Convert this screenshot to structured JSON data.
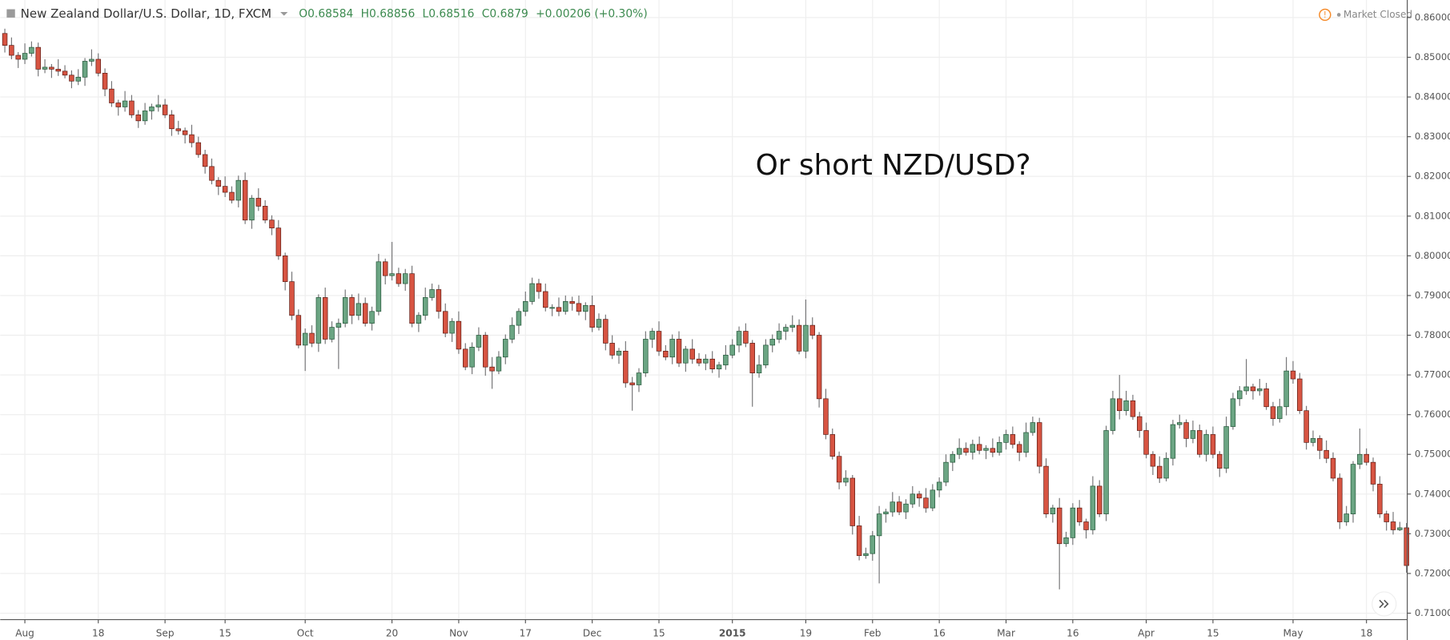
{
  "chart_data": {
    "type": "candlestick",
    "header": {
      "symbol": "New Zealand Dollar/U.S. Dollar, 1D, FXCM",
      "ohlc": [
        {
          "label": "O",
          "value": 0.68584
        },
        {
          "label": "H",
          "value": 0.68856
        },
        {
          "label": "L",
          "value": 0.68516
        },
        {
          "label": "C",
          "value": 0.6879
        }
      ],
      "change": "+0.00206 (+0.30%)",
      "status": "Market Closed"
    },
    "annotation": "Or short NZD/USD?",
    "categories": [
      null,
      null,
      null,
      "Aug",
      null,
      null,
      null,
      null,
      null,
      null,
      null,
      null,
      null,
      null,
      "18",
      null,
      null,
      null,
      null,
      null,
      null,
      null,
      null,
      null,
      "Sep",
      null,
      null,
      null,
      null,
      null,
      null,
      null,
      null,
      "15",
      null,
      null,
      null,
      null,
      null,
      null,
      null,
      null,
      null,
      null,
      null,
      "Oct",
      null,
      null,
      null,
      null,
      null,
      null,
      null,
      null,
      null,
      null,
      null,
      null,
      "20",
      null,
      null,
      null,
      null,
      null,
      null,
      null,
      null,
      null,
      "Nov",
      null,
      null,
      null,
      null,
      null,
      null,
      null,
      null,
      null,
      "17",
      null,
      null,
      null,
      null,
      null,
      null,
      null,
      null,
      null,
      "Dec",
      null,
      null,
      null,
      null,
      null,
      null,
      null,
      null,
      null,
      "15",
      null,
      null,
      null,
      null,
      null,
      null,
      null,
      null,
      null,
      null,
      "2015",
      null,
      null,
      null,
      null,
      null,
      null,
      null,
      null,
      null,
      null,
      "19",
      null,
      null,
      null,
      null,
      null,
      null,
      null,
      null,
      null,
      "Feb",
      null,
      null,
      null,
      null,
      null,
      null,
      null,
      null,
      null,
      "16",
      null,
      null,
      null,
      null,
      null,
      null,
      null,
      null,
      null,
      "Mar",
      null,
      null,
      null,
      null,
      null,
      null,
      null,
      null,
      null,
      "16",
      null,
      null,
      null,
      null,
      null,
      null,
      null,
      null,
      null,
      null,
      "Apr",
      null,
      null,
      null,
      null,
      null,
      null,
      null,
      null,
      null,
      "15",
      null,
      null,
      null,
      null,
      null,
      null,
      null,
      null,
      null,
      null,
      null,
      "May",
      null,
      null,
      null,
      null,
      null,
      null,
      null,
      null,
      null,
      null,
      "18",
      null,
      null,
      null,
      null,
      null,
      null
    ],
    "open": [
      0.856,
      0.853,
      0.8505,
      0.8495,
      0.851,
      0.8525,
      0.847,
      0.8475,
      0.847,
      0.8465,
      0.8455,
      0.844,
      0.845,
      0.849,
      0.8495,
      0.846,
      0.842,
      0.8385,
      0.8375,
      0.839,
      0.8355,
      0.834,
      0.8365,
      0.8375,
      0.838,
      0.8355,
      0.832,
      0.8315,
      0.8305,
      0.8285,
      0.8255,
      0.8225,
      0.819,
      0.8175,
      0.816,
      0.814,
      0.819,
      0.809,
      0.8145,
      0.8125,
      0.809,
      0.807,
      0.8,
      0.7935,
      0.785,
      0.7775,
      0.7805,
      0.778,
      0.7895,
      0.779,
      0.782,
      0.783,
      0.7895,
      0.785,
      0.788,
      0.783,
      0.786,
      0.7985,
      0.795,
      0.7955,
      0.793,
      0.7955,
      0.783,
      0.785,
      0.7895,
      0.7915,
      0.786,
      0.7805,
      0.7835,
      0.7765,
      0.772,
      0.777,
      0.78,
      0.772,
      0.771,
      0.7745,
      0.779,
      0.7825,
      0.786,
      0.7885,
      0.793,
      0.791,
      0.787,
      0.787,
      0.786,
      0.7885,
      0.788,
      0.786,
      0.7875,
      0.782,
      0.784,
      0.778,
      0.775,
      0.776,
      0.768,
      0.7675,
      0.7705,
      0.779,
      0.781,
      0.776,
      0.7745,
      0.779,
      0.773,
      0.7765,
      0.774,
      0.773,
      0.774,
      0.7715,
      0.7725,
      0.775,
      0.7775,
      0.781,
      0.778,
      0.7705,
      0.7725,
      0.7775,
      0.779,
      0.781,
      0.782,
      0.7825,
      0.776,
      0.7825,
      0.78,
      0.764,
      0.755,
      0.7495,
      0.743,
      0.744,
      0.732,
      0.7245,
      0.725,
      0.7295,
      0.735,
      0.7355,
      0.738,
      0.7355,
      0.7375,
      0.74,
      0.739,
      0.7365,
      0.741,
      0.743,
      0.748,
      0.75,
      0.7515,
      0.7505,
      0.7525,
      0.751,
      0.7515,
      0.7505,
      0.753,
      0.755,
      0.7525,
      0.7505,
      0.7555,
      0.758,
      0.747,
      0.735,
      0.7365,
      0.7275,
      0.729,
      0.7365,
      0.733,
      0.731,
      0.742,
      0.735,
      0.756,
      0.764,
      0.761,
      0.7635,
      0.7595,
      0.756,
      0.75,
      0.747,
      0.744,
      0.749,
      0.7575,
      0.758,
      0.754,
      0.756,
      0.75,
      0.755,
      0.75,
      0.7465,
      0.757,
      0.764,
      0.766,
      0.767,
      0.766,
      0.7665,
      0.762,
      0.759,
      0.762,
      0.771,
      0.769,
      0.761,
      0.753,
      0.754,
      0.751,
      0.749,
      0.744,
      0.733,
      0.735,
      0.7475,
      0.75,
      0.748,
      0.7425,
      0.735,
      0.733,
      0.731,
      0.7315
    ],
    "high": [
      0.8572,
      0.855,
      0.8513,
      0.8535,
      0.854,
      0.8537,
      0.8495,
      0.8483,
      0.8495,
      0.848,
      0.8467,
      0.847,
      0.8498,
      0.852,
      0.851,
      0.8472,
      0.844,
      0.8393,
      0.8415,
      0.8405,
      0.8367,
      0.8385,
      0.8383,
      0.8405,
      0.8395,
      0.8367,
      0.834,
      0.8323,
      0.833,
      0.83,
      0.8267,
      0.8245,
      0.8198,
      0.82,
      0.8175,
      0.8202,
      0.821,
      0.8153,
      0.817,
      0.814,
      0.8102,
      0.809,
      0.8008,
      0.796,
      0.7865,
      0.7817,
      0.7825,
      0.7903,
      0.792,
      0.7835,
      0.7842,
      0.7915,
      0.7903,
      0.7905,
      0.7895,
      0.7872,
      0.8005,
      0.7993,
      0.8035,
      0.797,
      0.7967,
      0.7975,
      0.7858,
      0.792,
      0.793,
      0.7927,
      0.788,
      0.7843,
      0.786,
      0.778,
      0.7782,
      0.782,
      0.7808,
      0.7745,
      0.776,
      0.7802,
      0.7845,
      0.7868,
      0.791,
      0.7945,
      0.7942,
      0.793,
      0.7878,
      0.7895,
      0.79,
      0.7897,
      0.79,
      0.7883,
      0.79,
      0.7855,
      0.7852,
      0.78,
      0.7768,
      0.7785,
      0.7695,
      0.7717,
      0.781,
      0.7818,
      0.7835,
      0.7775,
      0.7802,
      0.781,
      0.7773,
      0.779,
      0.7755,
      0.7752,
      0.776,
      0.7733,
      0.7775,
      0.779,
      0.7822,
      0.783,
      0.7788,
      0.775,
      0.779,
      0.7802,
      0.783,
      0.7828,
      0.785,
      0.784,
      0.789,
      0.7845,
      0.7808,
      0.7665,
      0.7565,
      0.7507,
      0.746,
      0.7448,
      0.7345,
      0.7265,
      0.7307,
      0.737,
      0.7363,
      0.7405,
      0.7395,
      0.7387,
      0.742,
      0.7408,
      0.7415,
      0.7425,
      0.7442,
      0.75,
      0.7508,
      0.754,
      0.753,
      0.7537,
      0.7545,
      0.7523,
      0.754,
      0.7545,
      0.7562,
      0.757,
      0.7533,
      0.758,
      0.7595,
      0.7592,
      0.749,
      0.7373,
      0.739,
      0.7305,
      0.7377,
      0.7385,
      0.7338,
      0.7445,
      0.7435,
      0.7572,
      0.766,
      0.77,
      0.766,
      0.765,
      0.7607,
      0.758,
      0.7508,
      0.7495,
      0.7505,
      0.7587,
      0.76,
      0.7588,
      0.7585,
      0.7575,
      0.7562,
      0.757,
      0.7508,
      0.7595,
      0.7655,
      0.7672,
      0.774,
      0.7678,
      0.769,
      0.768,
      0.7632,
      0.764,
      0.7745,
      0.7735,
      0.7705,
      0.7622,
      0.756,
      0.7548,
      0.7535,
      0.7505,
      0.7452,
      0.737,
      0.7483,
      0.7565,
      0.7515,
      0.7492,
      0.7445,
      0.7358,
      0.7355,
      0.733,
      0.7327
    ],
    "low": [
      0.8512,
      0.8495,
      0.8473,
      0.8483,
      0.8502,
      0.8452,
      0.846,
      0.8448,
      0.8453,
      0.8447,
      0.8422,
      0.843,
      0.8428,
      0.8478,
      0.8452,
      0.8402,
      0.8375,
      0.8353,
      0.8363,
      0.8347,
      0.8322,
      0.833,
      0.8343,
      0.8363,
      0.8347,
      0.8302,
      0.8305,
      0.8283,
      0.8273,
      0.8247,
      0.8207,
      0.818,
      0.8153,
      0.8148,
      0.8132,
      0.8122,
      0.808,
      0.8068,
      0.8113,
      0.8082,
      0.8052,
      0.799,
      0.7913,
      0.7838,
      0.7767,
      0.771,
      0.777,
      0.7758,
      0.7778,
      0.7782,
      0.7715,
      0.782,
      0.7828,
      0.7838,
      0.7822,
      0.7812,
      0.785,
      0.7928,
      0.7938,
      0.7922,
      0.7912,
      0.782,
      0.7808,
      0.7838,
      0.7887,
      0.7842,
      0.7795,
      0.7783,
      0.7753,
      0.7712,
      0.7702,
      0.776,
      0.7698,
      0.7665,
      0.7702,
      0.7727,
      0.778,
      0.7803,
      0.7848,
      0.7877,
      0.7892,
      0.786,
      0.7848,
      0.7848,
      0.7852,
      0.7862,
      0.785,
      0.7838,
      0.7808,
      0.7812,
      0.7762,
      0.774,
      0.7728,
      0.7668,
      0.761,
      0.7657,
      0.7695,
      0.7768,
      0.7748,
      0.7737,
      0.7727,
      0.772,
      0.7708,
      0.7728,
      0.7722,
      0.7712,
      0.7705,
      0.7693,
      0.7713,
      0.7742,
      0.7757,
      0.777,
      0.762,
      0.7693,
      0.7717,
      0.7757,
      0.778,
      0.7788,
      0.7808,
      0.7752,
      0.7742,
      0.779,
      0.7618,
      0.7538,
      0.7487,
      0.7412,
      0.742,
      0.7298,
      0.7233,
      0.7237,
      0.7232,
      0.7175,
      0.7328,
      0.7343,
      0.7347,
      0.7337,
      0.7365,
      0.7368,
      0.7353,
      0.7357,
      0.7392,
      0.742,
      0.7458,
      0.7488,
      0.7497,
      0.7487,
      0.75,
      0.7488,
      0.7493,
      0.7497,
      0.7512,
      0.7515,
      0.7483,
      0.7493,
      0.7547,
      0.7452,
      0.734,
      0.7328,
      0.716,
      0.7267,
      0.7272,
      0.732,
      0.7288,
      0.7298,
      0.7342,
      0.7332,
      0.755,
      0.7588,
      0.7598,
      0.7587,
      0.7542,
      0.749,
      0.7448,
      0.7428,
      0.7432,
      0.7472,
      0.7565,
      0.7518,
      0.7528,
      0.7492,
      0.7482,
      0.749,
      0.7443,
      0.7453,
      0.7562,
      0.7622,
      0.765,
      0.7638,
      0.7648,
      0.7612,
      0.7572,
      0.758,
      0.7598,
      0.7678,
      0.7602,
      0.7512,
      0.752,
      0.7488,
      0.7478,
      0.7432,
      0.7312,
      0.732,
      0.7328,
      0.7463,
      0.7472,
      0.7407,
      0.734,
      0.7308,
      0.7298,
      0.7307,
      0.7202
    ],
    "close": [
      0.853,
      0.8505,
      0.8495,
      0.851,
      0.8525,
      0.847,
      0.8475,
      0.847,
      0.8465,
      0.8455,
      0.844,
      0.845,
      0.849,
      0.8495,
      0.846,
      0.842,
      0.8385,
      0.8375,
      0.839,
      0.8355,
      0.834,
      0.8365,
      0.8375,
      0.838,
      0.8355,
      0.832,
      0.8315,
      0.8305,
      0.8285,
      0.8255,
      0.8225,
      0.819,
      0.8175,
      0.816,
      0.814,
      0.819,
      0.809,
      0.8145,
      0.8125,
      0.809,
      0.807,
      0.8,
      0.7935,
      0.785,
      0.7775,
      0.7805,
      0.778,
      0.7895,
      0.779,
      0.782,
      0.783,
      0.7895,
      0.785,
      0.788,
      0.783,
      0.786,
      0.7985,
      0.795,
      0.7955,
      0.793,
      0.7955,
      0.783,
      0.785,
      0.7895,
      0.7915,
      0.786,
      0.7805,
      0.7835,
      0.7765,
      0.772,
      0.777,
      0.78,
      0.772,
      0.771,
      0.7745,
      0.779,
      0.7825,
      0.786,
      0.7885,
      0.793,
      0.791,
      0.787,
      0.787,
      0.786,
      0.7885,
      0.788,
      0.786,
      0.7875,
      0.782,
      0.784,
      0.778,
      0.775,
      0.776,
      0.768,
      0.7675,
      0.7705,
      0.779,
      0.781,
      0.776,
      0.7745,
      0.779,
      0.773,
      0.7765,
      0.774,
      0.773,
      0.774,
      0.7715,
      0.7725,
      0.775,
      0.7775,
      0.781,
      0.778,
      0.7705,
      0.7725,
      0.7775,
      0.779,
      0.781,
      0.782,
      0.7825,
      0.776,
      0.7825,
      0.78,
      0.764,
      0.755,
      0.7495,
      0.743,
      0.744,
      0.732,
      0.7245,
      0.725,
      0.7295,
      0.735,
      0.7355,
      0.738,
      0.7355,
      0.7375,
      0.74,
      0.739,
      0.7365,
      0.741,
      0.743,
      0.748,
      0.75,
      0.7515,
      0.7505,
      0.7525,
      0.751,
      0.7515,
      0.7505,
      0.753,
      0.755,
      0.7525,
      0.7505,
      0.7555,
      0.758,
      0.747,
      0.735,
      0.7365,
      0.7275,
      0.729,
      0.7365,
      0.733,
      0.731,
      0.742,
      0.735,
      0.756,
      0.764,
      0.761,
      0.7635,
      0.7595,
      0.756,
      0.75,
      0.747,
      0.744,
      0.749,
      0.7575,
      0.758,
      0.754,
      0.756,
      0.75,
      0.755,
      0.75,
      0.7465,
      0.757,
      0.764,
      0.766,
      0.767,
      0.766,
      0.7665,
      0.762,
      0.759,
      0.762,
      0.771,
      0.769,
      0.761,
      0.753,
      0.754,
      0.751,
      0.749,
      0.744,
      0.733,
      0.735,
      0.7475,
      0.75,
      0.748,
      0.7425,
      0.735,
      0.733,
      0.731,
      0.7315,
      0.722
    ],
    "up_color": "#6ba583",
    "down_color": "#d75442",
    "wick_color": "#737375",
    "ylim": [
      0.71,
      0.86
    ],
    "yticks": [
      {
        "value": 0.71,
        "label": "0.71000"
      },
      {
        "value": 0.72,
        "label": "0.72000"
      },
      {
        "value": 0.73,
        "label": "0.73000"
      },
      {
        "value": 0.74,
        "label": "0.74000"
      },
      {
        "value": 0.75,
        "label": "0.75000"
      },
      {
        "value": 0.76,
        "label": "0.76000"
      },
      {
        "value": 0.77,
        "label": "0.77000"
      },
      {
        "value": 0.78,
        "label": "0.78000"
      },
      {
        "value": 0.79,
        "label": "0.79000"
      },
      {
        "value": 0.8,
        "label": "0.80000"
      },
      {
        "value": 0.81,
        "label": "0.81000"
      },
      {
        "value": 0.82,
        "label": "0.82000"
      },
      {
        "value": 0.83,
        "label": "0.83000"
      },
      {
        "value": 0.84,
        "label": "0.84000"
      },
      {
        "value": 0.85,
        "label": "0.85000"
      },
      {
        "value": 0.86,
        "label": "0.86000"
      }
    ],
    "grid": true
  }
}
